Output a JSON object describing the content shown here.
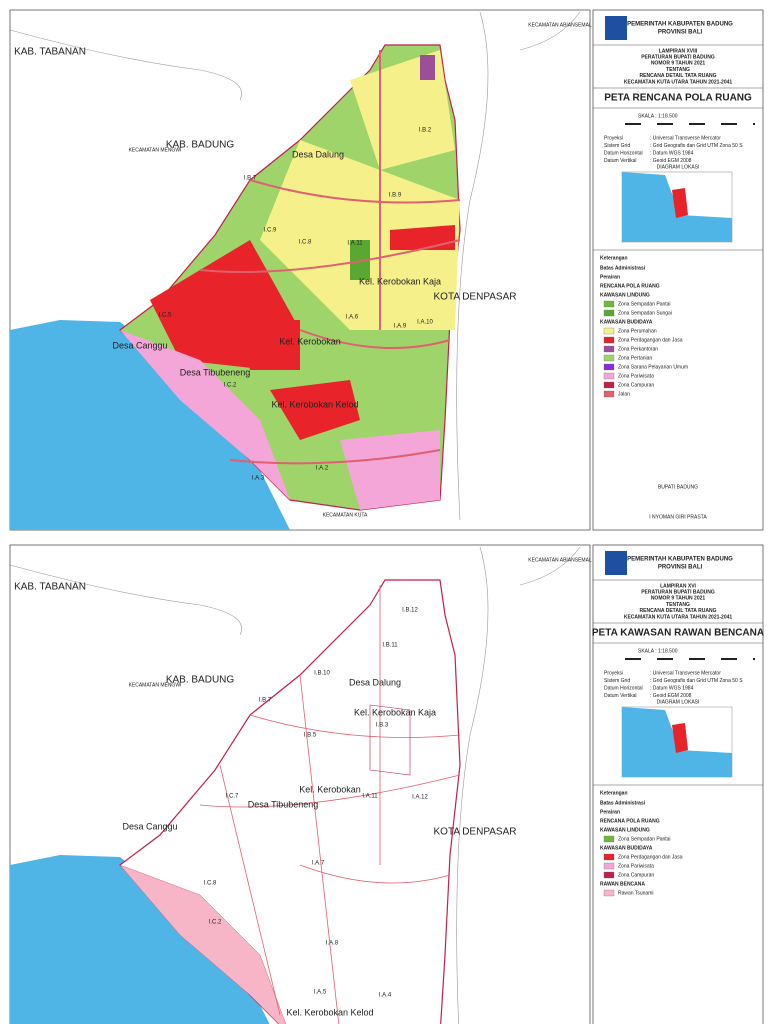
{
  "panels": [
    {
      "map_labels": [
        "KAB. TABANAN",
        "KAB. BADUNG",
        "KECAMATAN MENGWI",
        "KECAMATAN ABIANSEMAL",
        "Desa Dalung",
        "KOTA DENPASAR",
        "Kel. Kerobokan Kaja",
        "Kel. Kerobokan",
        "Desa Canggu",
        "Desa Tibubeneng",
        "Kel. Kerobokan Kelod",
        "KECAMATAN KUTA",
        "I.B.2",
        "I.B.7",
        "I.B.9",
        "I.C.9",
        "I.C.8",
        "I.A.11",
        "I.A.6",
        "I.A.9",
        "I.A.10",
        "I.C.5",
        "I.C.2",
        "I.A.3",
        "I.A.2"
      ],
      "header": {
        "gov": "PEMERINTAH KABUPATEN BADUNG",
        "prov": "PROVINSI BALI"
      },
      "lampiran": [
        "LAMPIRAN XVIII",
        "PERATURAN BUPATI BADUNG",
        "NOMOR 9 TAHUN 2021",
        "TENTANG",
        "RENCANA DETAIL TATA RUANG",
        "KECAMATAN KUTA UTARA TAHUN 2021-2041"
      ],
      "map_title": "PETA RENCANA POLA RUANG",
      "scale": "SKALA : 1:18.500",
      "projection": [
        [
          "Proyeksi",
          ": Universal Transverse Mercator"
        ],
        [
          "Sistem Grid",
          ": Grid Geografis dan Grid UTM Zona 50 S"
        ],
        [
          "Datum Horizontal",
          ": Datum WGS 1984"
        ],
        [
          "Datum Vertikal",
          ": Geoid EGM 2008"
        ]
      ],
      "inset_title": "DIAGRAM LOKASI",
      "legend_title": "Keterangan",
      "legend": [
        {
          "label": "Batas Administrasi"
        },
        {
          "label": "Perairan"
        },
        {
          "label": "RENCANA POLA RUANG"
        },
        {
          "label": "KAWASAN LINDUNG"
        },
        {
          "label": "Zona Sempadan Pantai",
          "color": "#6fb93a"
        },
        {
          "label": "Zona Sempadan Sungai",
          "color": "#5aa832"
        },
        {
          "label": "KAWASAN BUDIDAYA"
        },
        {
          "label": "Zona Perumahan",
          "color": "#f6f08a"
        },
        {
          "label": "Zona Perdagangan dan Jasa",
          "color": "#e8232a"
        },
        {
          "label": "Zona Perkantoran",
          "color": "#9b4f96"
        },
        {
          "label": "Zona Pertanian",
          "color": "#9fd46b"
        },
        {
          "label": "Zona Sarana Pelayanan Umum",
          "color": "#8a2be2"
        },
        {
          "label": "Zona Pariwisata",
          "color": "#f4a6d8"
        },
        {
          "label": "Zona Campuran",
          "color": "#c21f4a"
        },
        {
          "label": "Jalan",
          "color": "#e06070"
        }
      ],
      "signer": [
        "BUPATI BADUNG",
        "I NYOMAN GIRI PRASTA"
      ]
    },
    {
      "map_labels": [
        "KAB. TABANAN",
        "KAB. BADUNG",
        "KECAMATAN MENGWI",
        "KECAMATAN ABIANSEMAL",
        "Desa Dalung",
        "KOTA DENPASAR",
        "Kel. Kerobokan Kaja",
        "Kel. Kerobokan",
        "Desa Canggu",
        "Desa Tibubeneng",
        "Kel. Kerobokan Kelod",
        "I.B.12",
        "I.B.11",
        "I.B.10",
        "I.B.7",
        "I.B.5",
        "I.B.3",
        "I.A.11",
        "I.A.12",
        "I.C.7",
        "I.C.8",
        "I.A.7",
        "I.A.8",
        "I.C.2",
        "I.A.4",
        "I.A.5"
      ],
      "header": {
        "gov": "PEMERINTAH KABUPATEN BADUNG",
        "prov": "PROVINSI BALI"
      },
      "lampiran": [
        "LAMPIRAN XVI",
        "PERATURAN BUPATI BADUNG",
        "NOMOR 9 TAHUN 2021",
        "TENTANG",
        "RENCANA DETAIL TATA RUANG",
        "KECAMATAN KUTA UTARA TAHUN 2021-2041"
      ],
      "map_title": "PETA KAWASAN RAWAN BENCANA",
      "scale": "SKALA : 1:18.500",
      "projection": [
        [
          "Proyeksi",
          ": Universal Transverse Mercator"
        ],
        [
          "Sistem Grid",
          ": Grid Geografis dan Grid UTM Zona 50 S"
        ],
        [
          "Datum Horizontal",
          ": Datum WGS 1984"
        ],
        [
          "Datum Vertikal",
          ": Geoid EGM 2008"
        ]
      ],
      "inset_title": "DIAGRAM LOKASI",
      "legend_title": "Keterangan",
      "legend": [
        {
          "label": "Batas Administrasi"
        },
        {
          "label": "Perairan"
        },
        {
          "label": "RENCANA POLA RUANG"
        },
        {
          "label": "KAWASAN LINDUNG"
        },
        {
          "label": "Zona Sempadan Pantai",
          "color": "#6fb93a"
        },
        {
          "label": "KAWASAN BUDIDAYA"
        },
        {
          "label": "Zona Perdagangan dan Jasa",
          "color": "#e8232a"
        },
        {
          "label": "Zona Pariwisata",
          "color": "#f4a6d8"
        },
        {
          "label": "Zona Campuran",
          "color": "#c21f4a"
        },
        {
          "label": "RAWAN BENCANA"
        },
        {
          "label": "Rawan Tsunami",
          "color": "#f7b6c8"
        }
      ],
      "signer": []
    }
  ]
}
